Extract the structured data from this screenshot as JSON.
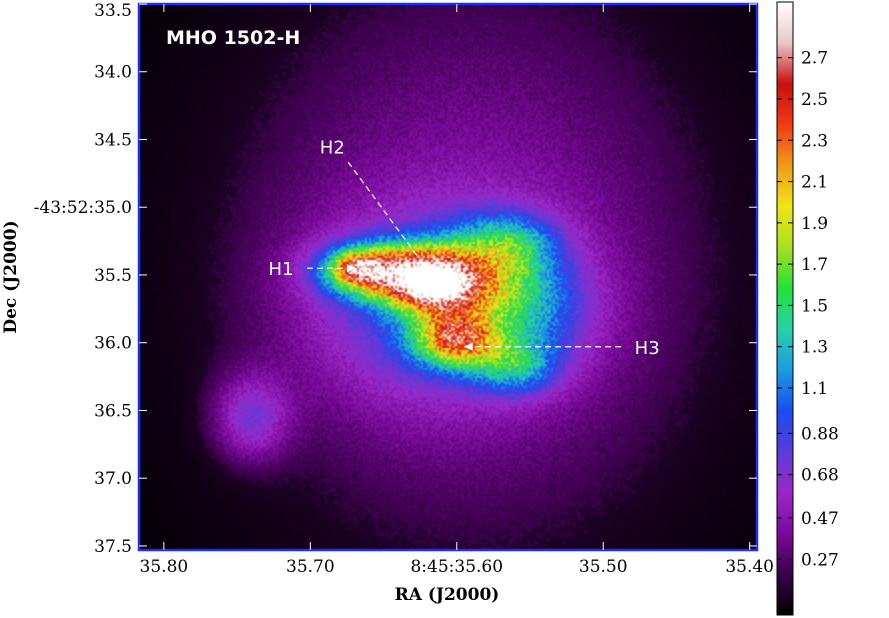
{
  "chart_data": {
    "type": "heatmap",
    "title": "MHO 1502-H",
    "xlabel": "RA (J2000)",
    "ylabel": "Dec (J2000)",
    "x_ticks": [
      "35.80",
      "35.70",
      "8:45:35.60",
      "35.50",
      "35.40"
    ],
    "y_ticks": [
      "33.5",
      "34.0",
      "34.5",
      "-43:52:35.0",
      "35.5",
      "36.0",
      "36.5",
      "37.0",
      "37.5"
    ],
    "x_tick_values": [
      35.8,
      35.7,
      35.6,
      35.5,
      35.4
    ],
    "y_tick_values": [
      33.5,
      34.0,
      34.5,
      35.0,
      35.5,
      36.0,
      36.5,
      37.0,
      37.5
    ],
    "xlim": [
      35.817,
      35.395
    ],
    "ylim": [
      37.53,
      33.5
    ],
    "colorbar": {
      "ticks": [
        "2.7",
        "2.5",
        "2.3",
        "2.1",
        "1.9",
        "1.7",
        "1.5",
        "1.3",
        "1.1",
        "0.88",
        "0.68",
        "0.47",
        "0.27"
      ],
      "tick_values": [
        2.7,
        2.5,
        2.3,
        2.1,
        1.9,
        1.7,
        1.5,
        1.3,
        1.1,
        0.88,
        0.68,
        0.47,
        0.27
      ],
      "range": [
        0.0,
        2.97
      ],
      "colors": [
        "#000000",
        "#3a004a",
        "#7a0a9a",
        "#9a28c8",
        "#5a3cd8",
        "#1a4cf0",
        "#1a9ce0",
        "#2ad0a8",
        "#24e03a",
        "#a8e020",
        "#f0e41a",
        "#f09a1a",
        "#f03a14",
        "#c81010",
        "#e8c8c8",
        "#ffffff"
      ]
    },
    "annotations": [
      {
        "label": "H1",
        "ra": 35.72,
        "dec": 35.45,
        "target_ra": 35.666,
        "target_dec": 35.45
      },
      {
        "label": "H2",
        "ra": 35.685,
        "dec": 34.55,
        "target_ra": 35.616,
        "target_dec": 35.52
      },
      {
        "label": "H3",
        "ra": 35.47,
        "dec": 36.03,
        "target_ra": 35.598,
        "target_dec": 36.03
      }
    ],
    "emission_components": [
      {
        "ra": 35.59,
        "dec": 35.4,
        "sx": 0.12,
        "sy": 1.55,
        "rot": 0.35,
        "amp": 0.45
      },
      {
        "ra": 35.612,
        "dec": 35.75,
        "sx": 0.06,
        "sy": 0.48,
        "rot": 0.0,
        "amp": 0.6
      },
      {
        "ra": 35.655,
        "dec": 35.47,
        "sx": 0.026,
        "sy": 0.14,
        "rot": 0.0,
        "amp": 1.55
      },
      {
        "ra": 35.668,
        "dec": 35.45,
        "sx": 0.012,
        "sy": 0.08,
        "rot": 0.0,
        "amp": 0.9
      },
      {
        "ra": 35.615,
        "dec": 35.55,
        "sx": 0.022,
        "sy": 0.16,
        "rot": 0.0,
        "amp": 1.85
      },
      {
        "ra": 35.615,
        "dec": 35.57,
        "sx": 0.009,
        "sy": 0.06,
        "rot": 0.0,
        "amp": 0.9
      },
      {
        "ra": 35.6,
        "dec": 35.98,
        "sx": 0.02,
        "sy": 0.14,
        "rot": 0.0,
        "amp": 1.45
      },
      {
        "ra": 35.58,
        "dec": 35.45,
        "sx": 0.028,
        "sy": 0.24,
        "rot": 0.0,
        "amp": 0.7
      },
      {
        "ra": 35.56,
        "dec": 36.18,
        "sx": 0.02,
        "sy": 0.14,
        "rot": 0.0,
        "amp": 0.65
      },
      {
        "ra": 35.56,
        "dec": 35.25,
        "sx": 0.02,
        "sy": 0.14,
        "rot": 0.0,
        "amp": 0.45
      },
      {
        "ra": 35.55,
        "dec": 35.75,
        "sx": 0.03,
        "sy": 0.3,
        "rot": 0.0,
        "amp": 0.45
      },
      {
        "ra": 35.74,
        "dec": 36.55,
        "sx": 0.018,
        "sy": 0.22,
        "rot": 0.0,
        "amp": 0.55
      }
    ]
  }
}
